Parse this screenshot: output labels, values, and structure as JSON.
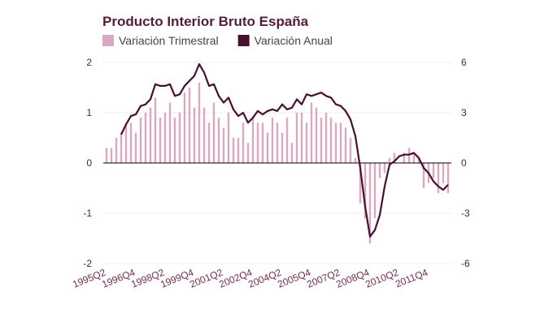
{
  "chart_data": {
    "type": "bar_line",
    "title": "Producto Interior Bruto España",
    "categories": [
      "1995Q2",
      null,
      null,
      null,
      null,
      null,
      "1996Q4",
      null,
      null,
      null,
      null,
      null,
      "1998Q2",
      null,
      null,
      null,
      null,
      null,
      "1999Q4",
      null,
      null,
      null,
      null,
      null,
      "2001Q2",
      null,
      null,
      null,
      null,
      null,
      "2002Q4",
      null,
      null,
      null,
      null,
      null,
      "2004Q2",
      null,
      null,
      null,
      null,
      null,
      "2005Q4",
      null,
      null,
      null,
      null,
      null,
      "2007Q2",
      null,
      null,
      null,
      null,
      null,
      "2008Q4",
      null,
      null,
      null,
      null,
      null,
      "2010Q2",
      null,
      null,
      null,
      null,
      null,
      "2011Q4",
      null,
      null,
      null,
      null
    ],
    "series": [
      {
        "name": "Variación Trimestral",
        "color": "#dba8c1",
        "type": "bar",
        "axis": "y",
        "values": [
          0.3,
          0.3,
          0.5,
          0.6,
          0.8,
          0.8,
          0.6,
          0.9,
          1.0,
          1.1,
          1.3,
          0.9,
          1.0,
          1.2,
          0.9,
          1.0,
          1.4,
          1.5,
          1.1,
          1.6,
          1.1,
          0.8,
          1.2,
          0.9,
          0.7,
          1.0,
          0.5,
          0.5,
          0.8,
          0.4,
          0.9,
          0.8,
          0.8,
          0.6,
          0.9,
          0.8,
          0.6,
          0.9,
          0.4,
          1.0,
          1.0,
          0.8,
          1.2,
          1.1,
          0.9,
          1.0,
          0.9,
          0.8,
          0.8,
          0.7,
          0.5,
          0.1,
          -0.8,
          -1.1,
          -1.6,
          -1.1,
          -0.3,
          -0.2,
          0.1,
          0.2,
          0.0,
          0.2,
          0.3,
          0.2,
          0.1,
          -0.5,
          -0.4,
          -0.3,
          -0.6,
          -0.4,
          -0.6
        ]
      },
      {
        "name": "Variación Anual",
        "color": "#4a0f2e",
        "type": "line",
        "axis": "y2",
        "values": [
          null,
          null,
          null,
          1.7,
          2.3,
          2.8,
          2.9,
          3.4,
          3.5,
          3.8,
          4.7,
          4.6,
          4.6,
          4.7,
          4.0,
          4.1,
          4.6,
          4.9,
          5.2,
          5.9,
          5.4,
          4.6,
          4.7,
          4.0,
          3.6,
          3.9,
          3.2,
          2.8,
          3.0,
          2.4,
          2.7,
          3.1,
          2.9,
          3.1,
          3.2,
          3.1,
          3.5,
          3.2,
          3.3,
          3.8,
          3.5,
          4.1,
          4.0,
          4.1,
          4.2,
          4.0,
          3.9,
          3.5,
          3.4,
          3.1,
          2.6,
          1.6,
          -0.3,
          -2.6,
          -4.4,
          -4.0,
          -3.1,
          -1.4,
          -0.1,
          0.1,
          0.4,
          0.5,
          0.5,
          0.6,
          0.3,
          -0.3,
          -0.6,
          -1.1,
          -1.4,
          -1.6,
          -1.3
        ]
      }
    ],
    "ylim": [
      -2,
      2
    ],
    "yticks": [
      -2,
      -1,
      0,
      1,
      2
    ],
    "y2lim": [
      -6,
      6
    ],
    "y2ticks": [
      -6,
      -3,
      0,
      3,
      6
    ],
    "grid": true
  }
}
